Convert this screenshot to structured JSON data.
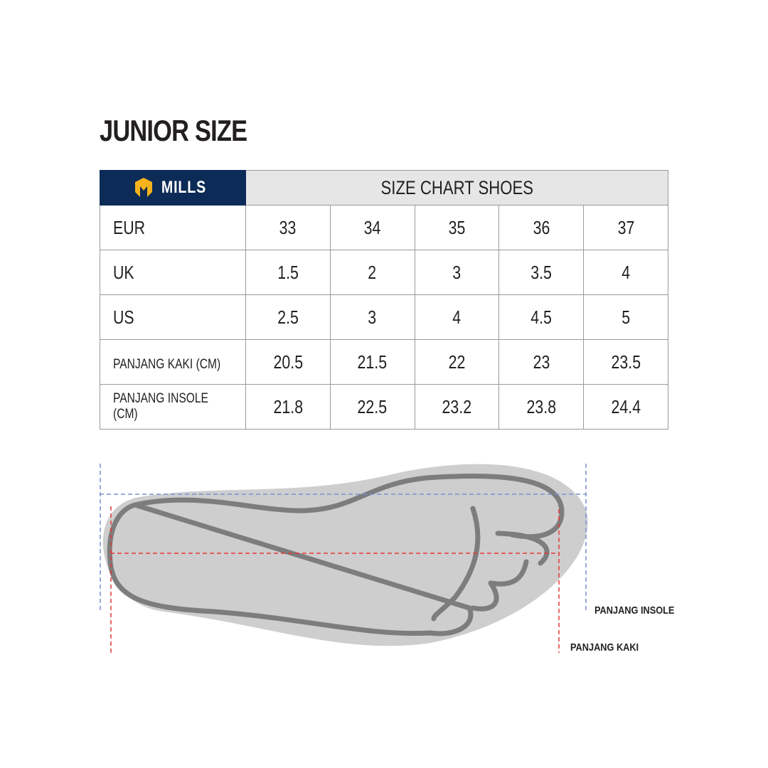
{
  "title": "JUNIOR SIZE",
  "brand": {
    "name": "MILLS",
    "color": "#0d2b57",
    "accent": "#f5b21b"
  },
  "header": "SIZE CHART SHOES",
  "rows": [
    {
      "label": "EUR",
      "values": [
        "33",
        "34",
        "35",
        "36",
        "37"
      ]
    },
    {
      "label": "UK",
      "values": [
        "1.5",
        "2",
        "3",
        "3.5",
        "4"
      ]
    },
    {
      "label": "US",
      "values": [
        "2.5",
        "3",
        "4",
        "4.5",
        "5"
      ]
    },
    {
      "label": "PANJANG KAKI (CM)",
      "values": [
        "20.5",
        "21.5",
        "22",
        "23",
        "23.5"
      ]
    },
    {
      "label": "PANJANG INSOLE (CM)",
      "values": [
        "21.8",
        "22.5",
        "23.2",
        "23.8",
        "24.4"
      ]
    }
  ],
  "diagram": {
    "insole_label": "PANJANG INSOLE",
    "kaki_label": "PANJANG KAKI",
    "insole_line_color": "#7b8fd0",
    "kaki_line_color": "#e03a3a"
  }
}
